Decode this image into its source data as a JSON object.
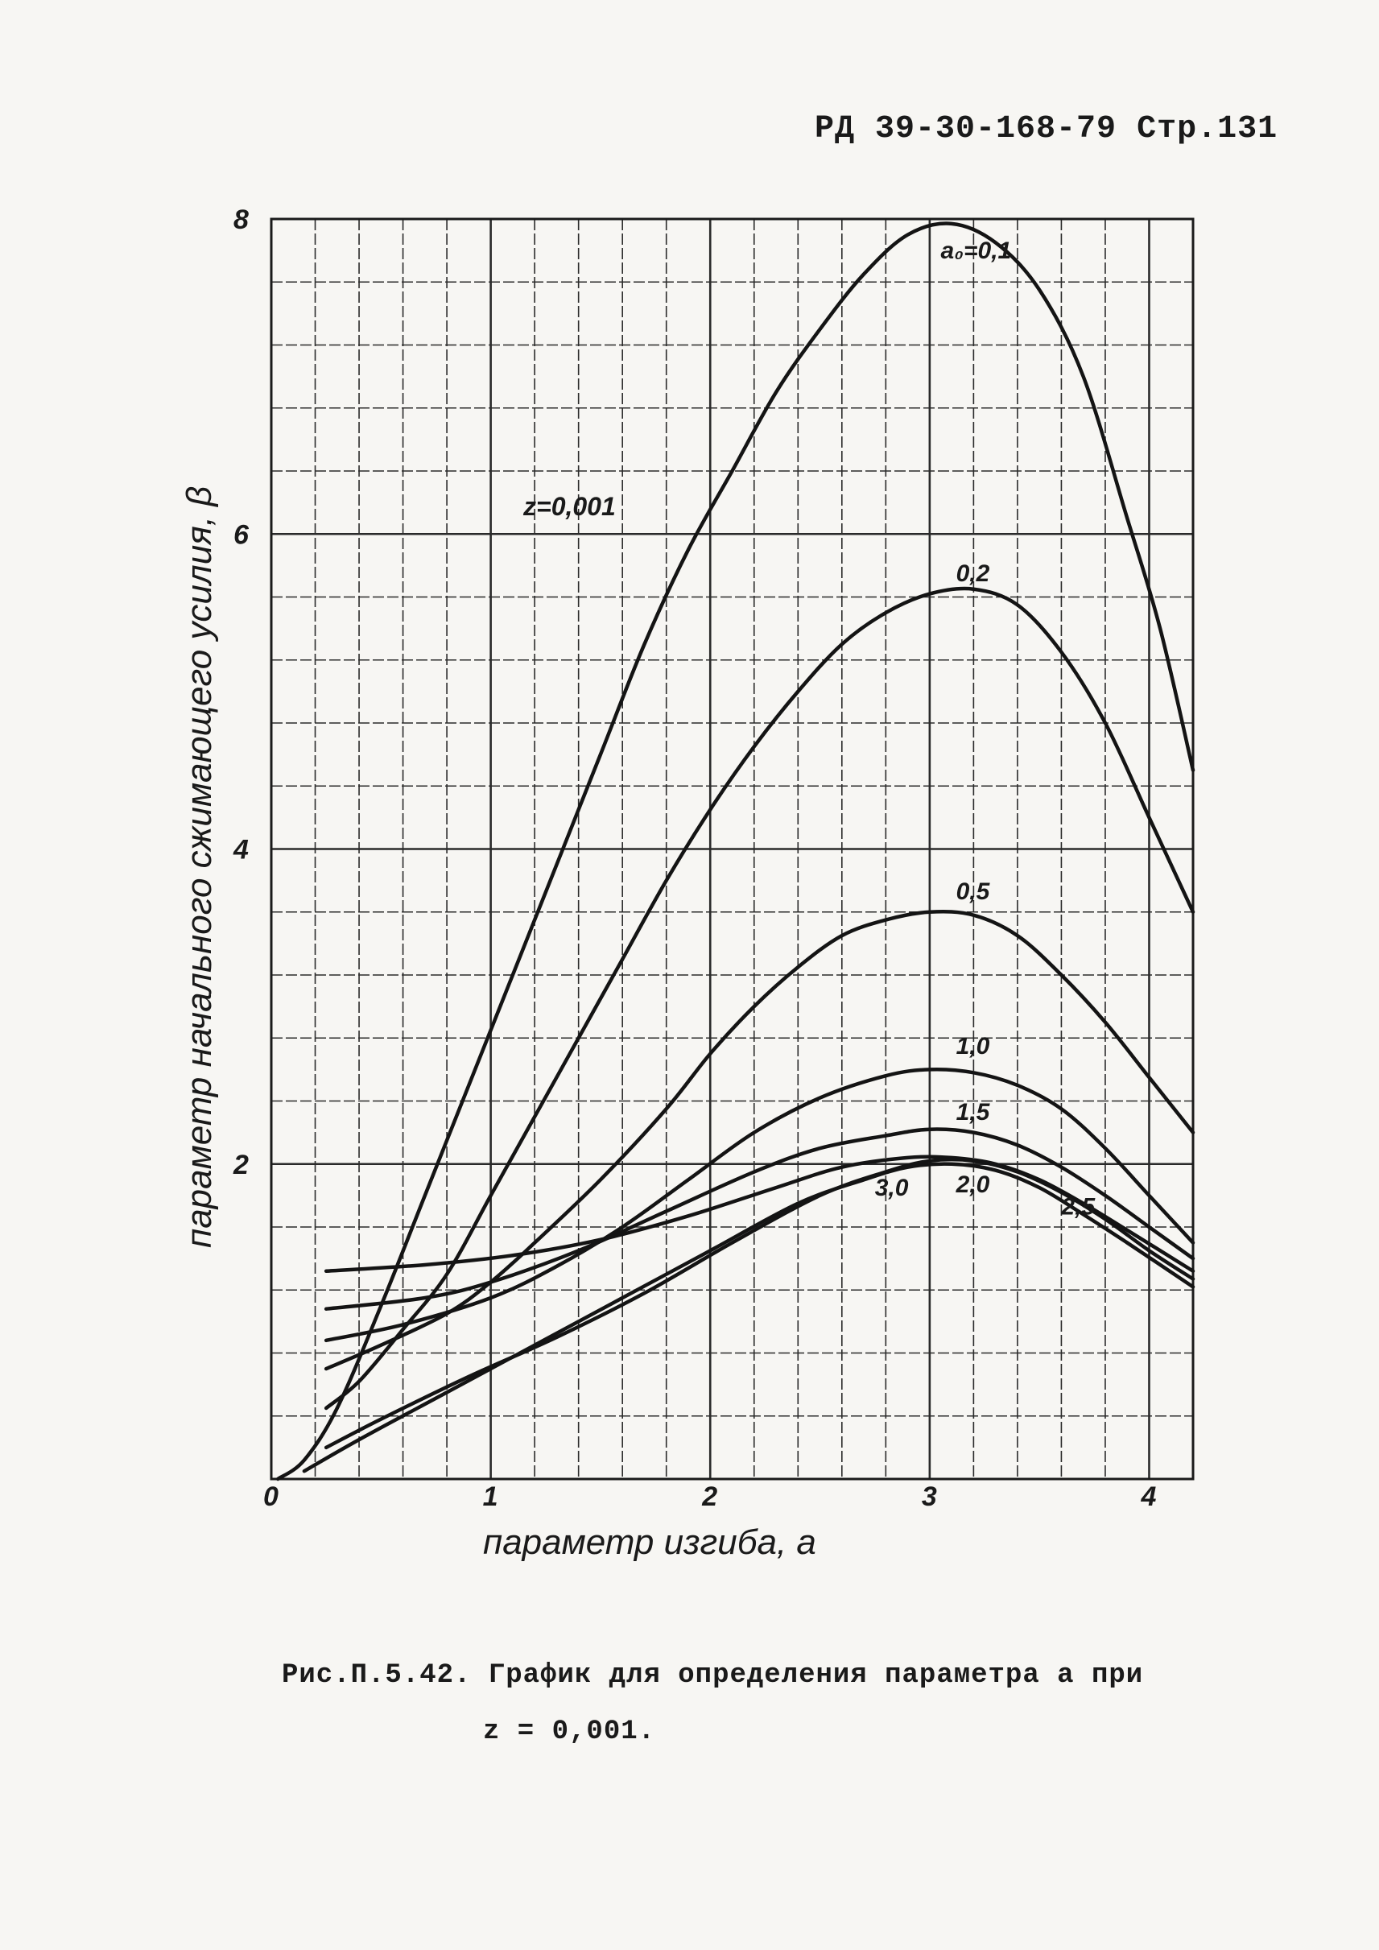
{
  "header": {
    "code": "РД 39-30-168-79  Стр.131"
  },
  "caption": {
    "line1": "Рис.П.5.42. График для определения параметра a  при",
    "line2": "z = 0,001."
  },
  "chart_data": {
    "type": "line",
    "xlabel": "параметр изгиба, a",
    "ylabel": "параметр начального сжимающего усилия, β",
    "xlim": [
      0,
      4.2
    ],
    "ylim": [
      0,
      8
    ],
    "x_ticks": [
      "0",
      "1",
      "2",
      "3",
      "4"
    ],
    "y_ticks": [
      "2",
      "4",
      "6",
      "8"
    ],
    "grid": true,
    "annotation": "z=0,001",
    "series": [
      {
        "name": "a₀=0,1",
        "x": [
          0.03,
          0.15,
          0.3,
          0.5,
          0.7,
          0.9,
          1.1,
          1.3,
          1.5,
          1.7,
          1.9,
          2.1,
          2.3,
          2.5,
          2.7,
          2.9,
          3.1,
          3.3,
          3.5,
          3.7,
          3.9,
          4.05,
          4.2
        ],
        "y": [
          0.0,
          0.12,
          0.45,
          1.1,
          1.8,
          2.5,
          3.2,
          3.9,
          4.6,
          5.3,
          5.9,
          6.4,
          6.9,
          7.3,
          7.65,
          7.9,
          7.97,
          7.85,
          7.55,
          7.0,
          6.1,
          5.4,
          4.5
        ]
      },
      {
        "name": "0,2",
        "x": [
          0.25,
          0.4,
          0.6,
          0.8,
          1.0,
          1.2,
          1.4,
          1.6,
          1.8,
          2.0,
          2.2,
          2.4,
          2.6,
          2.8,
          3.0,
          3.2,
          3.4,
          3.6,
          3.8,
          4.0,
          4.2
        ],
        "y": [
          0.45,
          0.62,
          0.95,
          1.3,
          1.8,
          2.3,
          2.8,
          3.3,
          3.8,
          4.25,
          4.65,
          5.0,
          5.3,
          5.5,
          5.62,
          5.65,
          5.55,
          5.25,
          4.8,
          4.2,
          3.6
        ]
      },
      {
        "name": "0,5",
        "x": [
          0.25,
          0.5,
          0.8,
          1.0,
          1.2,
          1.5,
          1.8,
          2.0,
          2.2,
          2.4,
          2.6,
          2.8,
          3.0,
          3.2,
          3.4,
          3.6,
          3.8,
          4.0,
          4.2
        ],
        "y": [
          0.7,
          0.85,
          1.05,
          1.25,
          1.5,
          1.9,
          2.35,
          2.7,
          3.0,
          3.25,
          3.45,
          3.55,
          3.6,
          3.58,
          3.45,
          3.2,
          2.9,
          2.55,
          2.2
        ]
      },
      {
        "name": "1,0",
        "x": [
          0.25,
          0.6,
          1.0,
          1.3,
          1.6,
          1.9,
          2.2,
          2.5,
          2.8,
          3.0,
          3.2,
          3.4,
          3.6,
          3.8,
          4.0,
          4.2
        ],
        "y": [
          0.88,
          0.98,
          1.15,
          1.35,
          1.6,
          1.9,
          2.2,
          2.42,
          2.56,
          2.6,
          2.58,
          2.5,
          2.35,
          2.1,
          1.8,
          1.5
        ]
      },
      {
        "name": "1,5",
        "x": [
          0.25,
          0.7,
          1.0,
          1.4,
          1.8,
          2.2,
          2.5,
          2.8,
          3.0,
          3.2,
          3.4,
          3.6,
          3.8,
          4.0,
          4.2
        ],
        "y": [
          1.08,
          1.15,
          1.25,
          1.45,
          1.7,
          1.95,
          2.1,
          2.18,
          2.22,
          2.2,
          2.12,
          1.98,
          1.8,
          1.6,
          1.4
        ]
      },
      {
        "name": "2,0",
        "x": [
          0.25,
          0.7,
          1.1,
          1.5,
          1.9,
          2.3,
          2.6,
          2.9,
          3.1,
          3.3,
          3.5,
          3.7,
          3.9,
          4.2
        ],
        "y": [
          1.32,
          1.36,
          1.42,
          1.52,
          1.67,
          1.85,
          1.98,
          2.04,
          2.04,
          2.0,
          1.9,
          1.75,
          1.58,
          1.32
        ]
      },
      {
        "name": "2,5",
        "x": [
          0.25,
          0.5,
          0.9,
          1.3,
          1.7,
          2.1,
          2.5,
          2.8,
          3.0,
          3.2,
          3.4,
          3.6,
          3.8,
          4.0,
          4.2
        ],
        "y": [
          0.2,
          0.38,
          0.65,
          0.9,
          1.18,
          1.5,
          1.8,
          1.95,
          2.02,
          2.02,
          1.95,
          1.82,
          1.65,
          1.45,
          1.27
        ]
      },
      {
        "name": "3,0",
        "x": [
          0.15,
          0.4,
          0.8,
          1.2,
          1.6,
          2.0,
          2.4,
          2.7,
          2.9,
          3.1,
          3.3,
          3.5,
          3.7,
          3.9,
          4.2
        ],
        "y": [
          0.05,
          0.25,
          0.55,
          0.85,
          1.15,
          1.45,
          1.75,
          1.9,
          1.98,
          2.0,
          1.96,
          1.85,
          1.68,
          1.5,
          1.22
        ]
      }
    ]
  }
}
